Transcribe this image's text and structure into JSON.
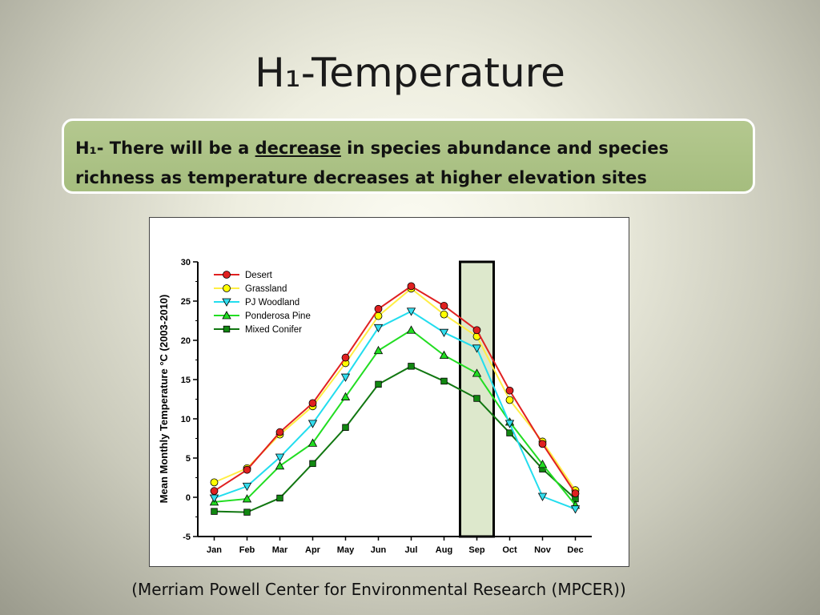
{
  "slide": {
    "title": "H₁-Temperature",
    "hypothesis": {
      "prefix": "H₁- There will be a ",
      "emphasis": "decrease",
      "suffix": " in species abundance and species richness as temperature decreases at higher elevation sites"
    },
    "source": "(Merriam Powell Center for Environmental Research (MPCER))"
  },
  "chart_data": {
    "type": "line",
    "categories": [
      "Jan",
      "Feb",
      "Mar",
      "Apr",
      "May",
      "Jun",
      "Jul",
      "Aug",
      "Sep",
      "Oct",
      "Nov",
      "Dec"
    ],
    "ylabel": "Mean Monthly Temperature °C (2003-2010)",
    "ylim": [
      -5,
      30
    ],
    "yticks": [
      -5,
      0,
      5,
      10,
      15,
      20,
      25,
      30
    ],
    "legend_position": "top-left",
    "highlight": {
      "category": "Sep",
      "fill": "#dde8cc"
    },
    "series": [
      {
        "name": "Desert",
        "line_color": "#e02020",
        "marker": "circle",
        "marker_color": "#e02020",
        "values": [
          0.8,
          3.5,
          8.3,
          12.0,
          17.8,
          24.0,
          26.9,
          24.4,
          21.3,
          13.6,
          6.8,
          0.5
        ]
      },
      {
        "name": "Grassland",
        "line_color": "#ffee44",
        "marker": "circle",
        "marker_color": "#ffff00",
        "values": [
          1.9,
          3.7,
          8.0,
          11.6,
          17.1,
          23.1,
          26.6,
          23.3,
          20.5,
          12.4,
          7.1,
          0.9
        ]
      },
      {
        "name": "PJ Woodland",
        "line_color": "#22ddee",
        "marker": "triangle-down",
        "marker_color": "#33ddee",
        "values": [
          -0.1,
          1.4,
          5.1,
          9.4,
          15.3,
          21.6,
          23.7,
          21.0,
          19.0,
          9.4,
          0.1,
          -1.5
        ]
      },
      {
        "name": "Ponderosa Pine",
        "line_color": "#22dd22",
        "marker": "triangle-up",
        "marker_color": "#22dd22",
        "values": [
          -0.6,
          -0.2,
          4.0,
          6.9,
          12.8,
          18.7,
          21.3,
          18.1,
          15.8,
          9.6,
          4.2,
          -1.0
        ]
      },
      {
        "name": "Mixed Conifer",
        "line_color": "#117711",
        "marker": "square",
        "marker_color": "#118811",
        "values": [
          -1.8,
          -1.9,
          -0.1,
          4.3,
          8.9,
          14.4,
          16.7,
          14.8,
          12.6,
          8.2,
          3.6,
          -0.2
        ]
      }
    ]
  }
}
